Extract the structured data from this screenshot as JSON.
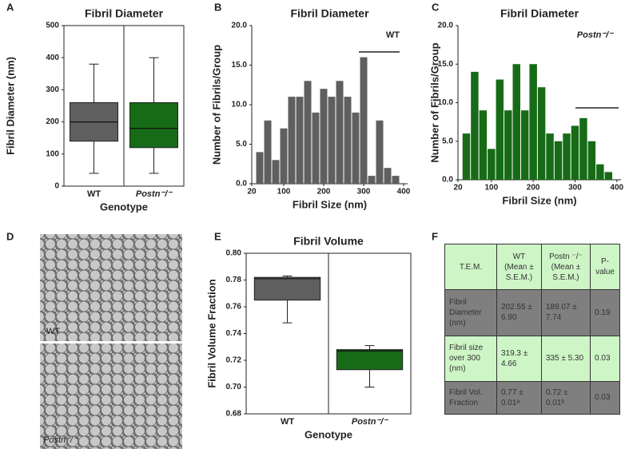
{
  "chart_data": [
    {
      "type": "box",
      "panel": "A",
      "title": "Fibril Diameter",
      "y_label": "Fibril Diameter (nm)",
      "x_label": "Genotype",
      "categories": [
        "WT",
        "Postn⁻/⁻"
      ],
      "boxes": [
        {
          "min": 40,
          "q1": 140,
          "median": 200,
          "q3": 260,
          "max": 380,
          "color": "#5f5f5f"
        },
        {
          "min": 40,
          "q1": 120,
          "median": 180,
          "q3": 260,
          "max": 400,
          "color": "#176b17"
        }
      ],
      "ylim": [
        0,
        500
      ],
      "yticks": [
        0,
        100,
        200,
        300,
        400,
        500
      ]
    },
    {
      "type": "histogram",
      "panel": "B",
      "title": "Fibril Diameter",
      "y_label": "Number of Fibrils/Group",
      "x_label": "Fibril Size (nm)",
      "annotation": "WT",
      "color": "#5f5f5f",
      "bins": [
        30,
        50,
        70,
        90,
        110,
        130,
        150,
        170,
        190,
        210,
        230,
        250,
        270,
        290,
        310,
        330,
        350,
        370,
        390
      ],
      "values": [
        4,
        8,
        3,
        7,
        11,
        11,
        13,
        9,
        12,
        11,
        13,
        11,
        9,
        16,
        1,
        8,
        2,
        1
      ],
      "xlim": [
        20,
        410
      ],
      "xticks": [
        20,
        100,
        200,
        300,
        400
      ],
      "ylim": [
        0,
        20
      ],
      "yticks": [
        {
          "value": 0,
          "label": "0.0"
        },
        {
          "value": 5,
          "label": "5.0"
        },
        {
          "value": 10,
          "label": "10.0"
        },
        {
          "value": 15,
          "label": "15.0"
        },
        {
          "value": 20,
          "label": "20.0"
        }
      ]
    },
    {
      "type": "histogram",
      "panel": "C",
      "title": "Fibril Diameter",
      "y_label": "Number of Fibrils/Group",
      "x_label": "Fibril Size (nm)",
      "annotation": "Postn⁻/⁻",
      "color": "#176b17",
      "bins": [
        30,
        50,
        70,
        90,
        110,
        130,
        150,
        170,
        190,
        210,
        230,
        250,
        270,
        290,
        310,
        330,
        350,
        370,
        390
      ],
      "values": [
        6,
        14,
        9,
        4,
        13,
        9,
        15,
        9,
        15,
        12,
        6,
        5,
        6,
        7,
        8,
        5,
        2,
        1
      ],
      "xlim": [
        20,
        410
      ],
      "xticks": [
        20,
        100,
        200,
        300,
        400
      ],
      "ylim": [
        0,
        20
      ],
      "yticks": [
        {
          "value": 0,
          "label": "0.0"
        },
        {
          "value": 5,
          "label": "5.0"
        },
        {
          "value": 10,
          "label": "10.0"
        },
        {
          "value": 15,
          "label": "15.0"
        },
        {
          "value": 20,
          "label": "20.0"
        }
      ]
    },
    {
      "type": "box",
      "panel": "E",
      "title": "Fibril Volume",
      "y_label": "Fibril Volume Fraction",
      "x_label": "Genotype",
      "categories": [
        "WT",
        "Postn⁻/⁻"
      ],
      "boxes": [
        {
          "min": 0.748,
          "q1": 0.765,
          "median": 0.781,
          "q3": 0.782,
          "max": 0.783,
          "color": "#5f5f5f"
        },
        {
          "min": 0.7,
          "q1": 0.713,
          "median": 0.727,
          "q3": 0.728,
          "max": 0.731,
          "color": "#176b17"
        }
      ],
      "ylim": [
        0.68,
        0.8
      ],
      "yticks": [
        0.68,
        {
          "value": 0.7,
          "label": "0.70"
        },
        0.72,
        0.74,
        0.76,
        0.78,
        {
          "value": 0.8,
          "label": "0.80"
        }
      ]
    }
  ],
  "micrographs": {
    "panel": "D",
    "labels": [
      "WT",
      "Postn⁻/⁻"
    ]
  },
  "table": {
    "panel": "F",
    "header": [
      "T.E.M.",
      "WT (Mean ± S.E.M.)",
      "Postn ⁻/⁻ (Mean ± S.E.M.)",
      "P-value"
    ],
    "rows": [
      [
        "Fibril Diameter (nm)",
        "202.55 ± 6.90",
        "189.07 ± 7.74",
        "0.19"
      ],
      [
        "Fibril size over 300 (nm)",
        "319.3 ± 4.66",
        "335 ± 5.30",
        "0.03"
      ],
      [
        "Fibril Vol. Fraction",
        "0.77 ± 0.01ᵃ",
        "0.72 ± 0.01ᵇ",
        "0.03"
      ]
    ]
  }
}
